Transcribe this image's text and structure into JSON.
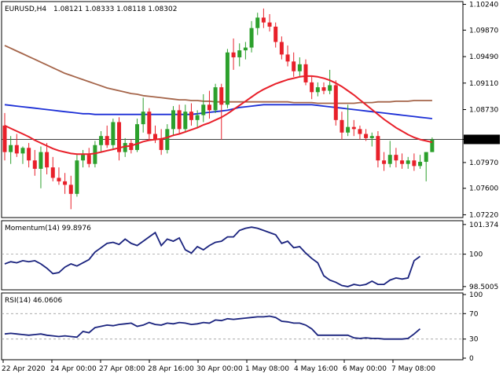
{
  "header": {
    "title": "EURUSD,H4",
    "ohlc": "1.08121 1.08333 1.08118 1.08302"
  },
  "chart_data": [
    {
      "type": "candlestick",
      "name": "price",
      "ylim": [
        1.0718,
        1.1028
      ],
      "yticks": [
        "1.10240",
        "1.09870",
        "1.09490",
        "1.09110",
        "1.08730",
        "1.08302",
        "1.07970",
        "1.07600",
        "1.07220"
      ],
      "current_price": "1.08302",
      "candles": [
        [
          1.085,
          1.0868,
          1.08,
          1.0812
        ],
        [
          1.0812,
          1.0835,
          1.0795,
          1.0822
        ],
        [
          1.0822,
          1.0838,
          1.0805,
          1.081
        ],
        [
          1.081,
          1.082,
          1.0795,
          1.0818
        ],
        [
          1.0818,
          1.0825,
          1.079,
          1.08
        ],
        [
          1.08,
          1.0815,
          1.0778,
          1.0788
        ],
        [
          1.0788,
          1.082,
          1.076,
          1.0812
        ],
        [
          1.0812,
          1.0825,
          1.078,
          1.079
        ],
        [
          1.079,
          1.0805,
          1.077,
          1.0775
        ],
        [
          1.0775,
          1.079,
          1.0765,
          1.077
        ],
        [
          1.077,
          1.0782,
          1.0752,
          1.0765
        ],
        [
          1.0765,
          1.0778,
          1.073,
          1.0752
        ],
        [
          1.0752,
          1.0808,
          1.0748,
          1.08
        ],
        [
          1.08,
          1.0815,
          1.079,
          1.0808
        ],
        [
          1.0808,
          1.0818,
          1.079,
          1.0795
        ],
        [
          1.0795,
          1.0828,
          1.079,
          1.0822
        ],
        [
          1.0822,
          1.0842,
          1.0812,
          1.0835
        ],
        [
          1.0835,
          1.085,
          1.0818,
          1.0822
        ],
        [
          1.0822,
          1.086,
          1.0815,
          1.0855
        ],
        [
          1.0855,
          1.0862,
          1.08,
          1.0812
        ],
        [
          1.0812,
          1.0832,
          1.0805,
          1.0825
        ],
        [
          1.0825,
          1.083,
          1.081,
          1.0815
        ],
        [
          1.0815,
          1.086,
          1.0812,
          1.0852
        ],
        [
          1.0852,
          1.089,
          1.084,
          1.087
        ],
        [
          1.087,
          1.0875,
          1.083,
          1.0838
        ],
        [
          1.0838,
          1.085,
          1.0825,
          1.083
        ],
        [
          1.083,
          1.0845,
          1.0808,
          1.0815
        ],
        [
          1.0815,
          1.0852,
          1.081,
          1.0845
        ],
        [
          1.0845,
          1.0878,
          1.0835,
          1.0872
        ],
        [
          1.0872,
          1.088,
          1.0838,
          1.0845
        ],
        [
          1.0845,
          1.088,
          1.084,
          1.087
        ],
        [
          1.087,
          1.0882,
          1.085,
          1.0858
        ],
        [
          1.0858,
          1.0872,
          1.0848,
          1.0865
        ],
        [
          1.0865,
          1.0895,
          1.0855,
          1.088
        ],
        [
          1.088,
          1.09,
          1.086,
          1.0872
        ],
        [
          1.0872,
          1.091,
          1.0868,
          1.0905
        ],
        [
          1.0905,
          1.091,
          1.083,
          1.088
        ],
        [
          1.088,
          1.096,
          1.0875,
          1.0955
        ],
        [
          1.0955,
          1.0975,
          1.093,
          1.0948
        ],
        [
          1.0948,
          1.0968,
          1.0935,
          1.0958
        ],
        [
          1.0958,
          1.097,
          1.0945,
          1.0962
        ],
        [
          1.0962,
          1.1,
          1.0955,
          1.099
        ],
        [
          1.099,
          1.1012,
          1.098,
          1.1005
        ],
        [
          1.1005,
          1.1018,
          1.099,
          1.0998
        ],
        [
          1.0998,
          1.101,
          1.0985,
          1.0992
        ],
        [
          1.0992,
          1.0998,
          1.0962,
          1.097
        ],
        [
          1.097,
          1.0978,
          1.0945,
          1.0952
        ],
        [
          1.0952,
          1.0965,
          1.0935,
          1.0942
        ],
        [
          1.0942,
          1.0955,
          1.092,
          1.0928
        ],
        [
          1.0928,
          1.0948,
          1.092,
          1.0938
        ],
        [
          1.0938,
          1.0945,
          1.0908,
          1.0912
        ],
        [
          1.0912,
          1.092,
          1.0888,
          1.0898
        ],
        [
          1.0898,
          1.0912,
          1.0892,
          1.0905
        ],
        [
          1.0905,
          1.0912,
          1.0895,
          1.09
        ],
        [
          1.09,
          1.093,
          1.0895,
          1.0908
        ],
        [
          1.0908,
          1.0915,
          1.085,
          1.0858
        ],
        [
          1.0858,
          1.087,
          1.083,
          1.084
        ],
        [
          1.084,
          1.088,
          1.0835,
          1.0848
        ],
        [
          1.0848,
          1.0858,
          1.0835,
          1.0845
        ],
        [
          1.0845,
          1.085,
          1.083,
          1.0838
        ],
        [
          1.0838,
          1.0845,
          1.0828,
          1.0832
        ],
        [
          1.0832,
          1.084,
          1.082,
          1.0835
        ],
        [
          1.0835,
          1.0842,
          1.079,
          1.08
        ],
        [
          1.08,
          1.0812,
          1.0785,
          1.0795
        ],
        [
          1.0795,
          1.0828,
          1.079,
          1.0808
        ],
        [
          1.0808,
          1.0818,
          1.079,
          1.08
        ],
        [
          1.08,
          1.081,
          1.0788,
          1.0795
        ],
        [
          1.0795,
          1.0805,
          1.0788,
          1.08
        ],
        [
          1.08,
          1.081,
          1.0785,
          1.0792
        ],
        [
          1.0792,
          1.0808,
          1.0788,
          1.0798
        ],
        [
          1.0798,
          1.0812,
          1.077,
          1.0812
        ],
        [
          1.0812,
          1.0833,
          1.0812,
          1.083
        ]
      ],
      "ma_red": [
        1.085,
        1.0846,
        1.0842,
        1.0838,
        1.0834,
        1.0829,
        1.0825,
        1.0821,
        1.0817,
        1.0814,
        1.0812,
        1.081,
        1.0809,
        1.0809,
        1.0809,
        1.081,
        1.0812,
        1.0814,
        1.0816,
        1.0818,
        1.082,
        1.0821,
        1.0824,
        1.0827,
        1.0829,
        1.083,
        1.0831,
        1.0833,
        1.0836,
        1.0838,
        1.0841,
        1.0844,
        1.0847,
        1.0851,
        1.0854,
        1.0858,
        1.0862,
        1.0867,
        1.0873,
        1.0879,
        1.0885,
        1.0891,
        1.0897,
        1.0902,
        1.0906,
        1.091,
        1.0913,
        1.0916,
        1.0918,
        1.092,
        1.0921,
        1.0921,
        1.092,
        1.0918,
        1.0915,
        1.0911,
        1.0906,
        1.09,
        1.0894,
        1.0887,
        1.088,
        1.0873,
        1.0866,
        1.0859,
        1.0853,
        1.0847,
        1.0842,
        1.0837,
        1.0833,
        1.083,
        1.0828,
        1.0826
      ],
      "ma_blue": [
        1.088,
        1.0879,
        1.0878,
        1.0877,
        1.0876,
        1.0875,
        1.0874,
        1.0873,
        1.0872,
        1.0871,
        1.087,
        1.0869,
        1.0868,
        1.0867,
        1.0867,
        1.0866,
        1.0866,
        1.0866,
        1.0866,
        1.0866,
        1.0866,
        1.0866,
        1.0866,
        1.0866,
        1.0866,
        1.0866,
        1.0866,
        1.0866,
        1.0866,
        1.0866,
        1.0866,
        1.0866,
        1.0867,
        1.0868,
        1.0869,
        1.087,
        1.0871,
        1.0872,
        1.0874,
        1.0876,
        1.0877,
        1.0878,
        1.0879,
        1.088,
        1.088,
        1.088,
        1.088,
        1.088,
        1.088,
        1.088,
        1.088,
        1.088,
        1.0879,
        1.0878,
        1.0877,
        1.0876,
        1.0875,
        1.0874,
        1.0873,
        1.0872,
        1.0871,
        1.087,
        1.0869,
        1.0868,
        1.0867,
        1.0866,
        1.0865,
        1.0864,
        1.0863,
        1.0862,
        1.0861,
        1.086
      ],
      "ma_brown": [
        1.0965,
        1.0961,
        1.0957,
        1.0953,
        1.0949,
        1.0945,
        1.0941,
        1.0937,
        1.0933,
        1.0929,
        1.0925,
        1.0922,
        1.0919,
        1.0916,
        1.0913,
        1.091,
        1.0907,
        1.0904,
        1.0902,
        1.09,
        1.0898,
        1.0896,
        1.0895,
        1.0893,
        1.0892,
        1.0891,
        1.089,
        1.0889,
        1.0888,
        1.0887,
        1.0887,
        1.0886,
        1.0886,
        1.0885,
        1.0885,
        1.0884,
        1.0884,
        1.0884,
        1.0884,
        1.0884,
        1.0884,
        1.0884,
        1.0884,
        1.0884,
        1.0884,
        1.0884,
        1.0884,
        1.0884,
        1.0883,
        1.0883,
        1.0883,
        1.0883,
        1.0882,
        1.0882,
        1.0882,
        1.0882,
        1.0882,
        1.0882,
        1.0882,
        1.0883,
        1.0883,
        1.0883,
        1.0884,
        1.0884,
        1.0884,
        1.0885,
        1.0885,
        1.0885,
        1.0886,
        1.0886,
        1.0886,
        1.0886
      ]
    },
    {
      "type": "line",
      "name": "momentum",
      "label": "Momentum(14) 99.8976",
      "ylim": [
        98.35,
        101.55
      ],
      "yticks": [
        "101.374",
        "100",
        "98.5005"
      ],
      "reference": 100,
      "values": [
        99.55,
        99.65,
        99.6,
        99.7,
        99.65,
        99.7,
        99.55,
        99.35,
        99.1,
        99.15,
        99.4,
        99.55,
        99.45,
        99.6,
        99.75,
        100.1,
        100.3,
        100.5,
        100.55,
        100.45,
        100.7,
        100.5,
        100.4,
        100.6,
        100.8,
        101.0,
        100.4,
        100.7,
        100.6,
        100.75,
        100.2,
        100.05,
        100.35,
        100.2,
        100.4,
        100.55,
        100.6,
        100.8,
        100.8,
        101.1,
        101.2,
        101.25,
        101.2,
        101.1,
        101.0,
        100.9,
        100.5,
        100.6,
        100.3,
        100.35,
        100.05,
        99.8,
        99.6,
        99.0,
        98.8,
        98.7,
        98.55,
        98.5,
        98.6,
        98.55,
        98.6,
        98.75,
        98.6,
        98.6,
        98.8,
        98.9,
        98.85,
        98.9,
        99.7,
        99.9
      ]
    },
    {
      "type": "line",
      "name": "rsi",
      "label": "RSI(14) 46.0606",
      "ylim": [
        0,
        100
      ],
      "yticks": [
        "100",
        "70",
        "30",
        "0"
      ],
      "levels": [
        70,
        30
      ],
      "values": [
        38,
        39,
        38,
        37,
        36,
        37,
        38,
        36,
        35,
        34,
        35,
        34,
        33,
        42,
        40,
        48,
        50,
        52,
        51,
        53,
        54,
        55,
        50,
        52,
        56,
        53,
        52,
        55,
        54,
        56,
        55,
        53,
        54,
        56,
        55,
        60,
        59,
        62,
        61,
        62,
        63,
        64,
        65,
        65,
        66,
        64,
        58,
        57,
        55,
        55,
        52,
        46,
        36,
        36,
        36,
        36,
        36,
        36,
        32,
        31,
        32,
        31,
        31,
        30,
        30,
        30,
        30,
        31,
        38,
        46
      ]
    }
  ],
  "xaxis": {
    "ticks": [
      "22 Apr 2020",
      "24 Apr 00:00",
      "27 Apr 08:00",
      "28 Apr 16:00",
      "30 Apr 00:00",
      "1 May 08:00",
      "4 May 16:00",
      "6 May 00:00",
      "7 May 08:00"
    ]
  },
  "colors": {
    "bull": "#2ca02c",
    "bear": "#e8202a",
    "ma_red": "#e8202a",
    "ma_blue": "#1c2fd6",
    "ma_brown": "#a5654a",
    "indicator": "#1a237e",
    "frame": "#000000",
    "grid_level": "#9e9e9e"
  }
}
